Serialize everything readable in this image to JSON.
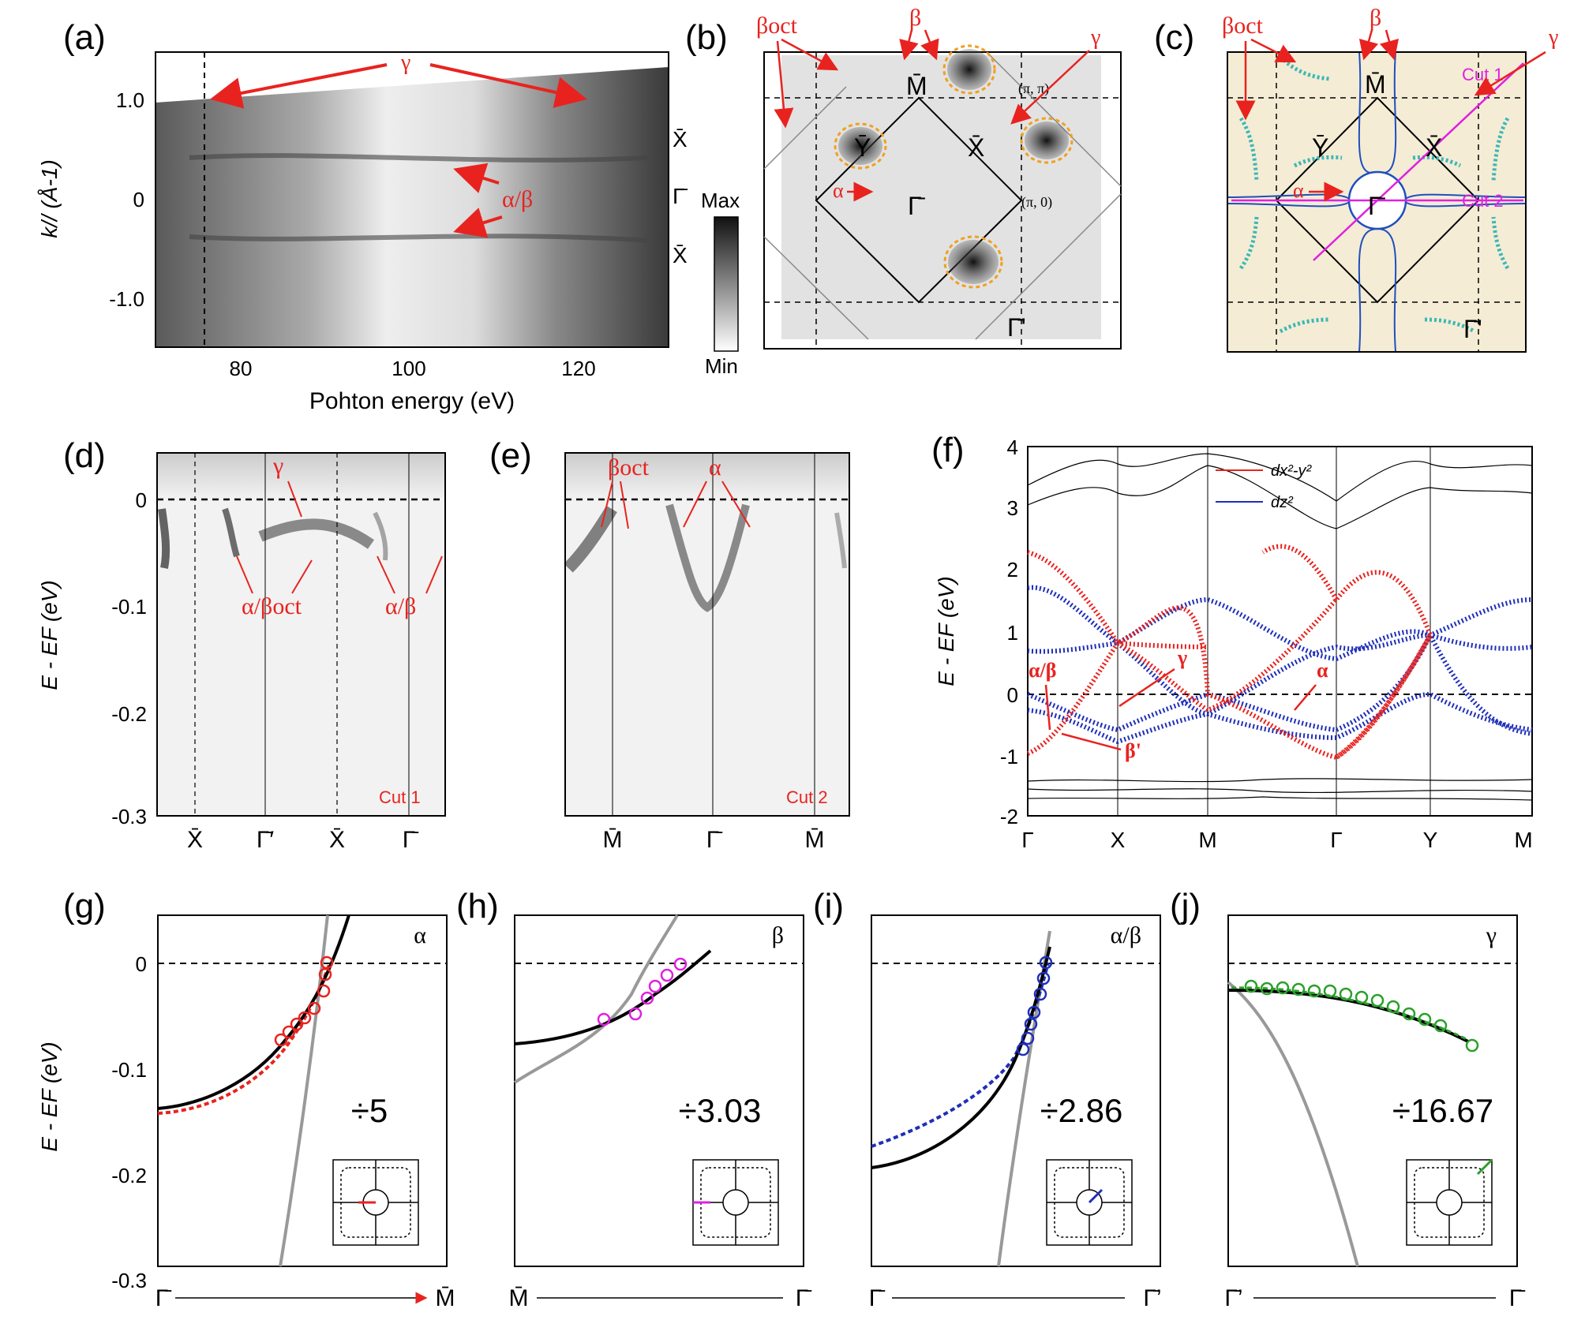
{
  "panels": {
    "a": {
      "label": "(a)",
      "xlabel": "Pohton energy (eV)",
      "ylabel": "k// (Å-1)",
      "xticks": [
        "80",
        "100",
        "120"
      ],
      "yticks": [
        "1.0",
        "0",
        "-1.0"
      ],
      "right_labels": [
        "X̄",
        "Γ̄",
        "X̄"
      ],
      "annotations": [
        "γ",
        "α/β"
      ],
      "colorbar": {
        "max": "Max",
        "min": "Min"
      }
    },
    "b": {
      "label": "(b)",
      "points": [
        "M̄",
        "Ȳ",
        "X̄",
        "Γ̄",
        "Γ̄'"
      ],
      "coords": [
        "(π, π)",
        "(π, 0)"
      ],
      "annotations": [
        "βoct",
        "β",
        "γ",
        "α"
      ]
    },
    "c": {
      "label": "(c)",
      "points": [
        "M̄",
        "Ȳ",
        "X̄",
        "Γ̄",
        "Γ̄'"
      ],
      "cuts": [
        "Cut 1",
        "Cut 2"
      ],
      "annotations": [
        "βoct",
        "β",
        "γ",
        "α"
      ]
    },
    "d": {
      "label": "(d)",
      "ylabel": "E - EF (eV)",
      "yticks": [
        "0",
        "-0.1",
        "-0.2",
        "-0.3"
      ],
      "xticks": [
        "X̄",
        "Γ̄′",
        "X̄",
        "Γ̄"
      ],
      "cut": "Cut 1",
      "annotations": [
        "γ",
        "α/βoct",
        "α/β"
      ]
    },
    "e": {
      "label": "(e)",
      "xticks": [
        "M̄",
        "Γ̄",
        "M̄"
      ],
      "cut": "Cut 2",
      "annotations": [
        "βoct",
        "α"
      ]
    },
    "f": {
      "label": "(f)",
      "ylabel": "E - EF (eV)",
      "yticks": [
        "4",
        "3",
        "2",
        "1",
        "0",
        "-1",
        "-2"
      ],
      "xticks": [
        "Γ",
        "X",
        "M",
        "Γ",
        "Y",
        "M"
      ],
      "legend": [
        "dx²-y²",
        "dz²"
      ],
      "annotations": [
        "α/β",
        "γ",
        "α",
        "β'"
      ]
    },
    "g": {
      "label": "(g)",
      "band": "α",
      "factor": "÷5",
      "xstart": "Γ̄",
      "xend": "M̄"
    },
    "h": {
      "label": "(h)",
      "band": "β",
      "factor": "÷3.03",
      "xstart": "M̄",
      "xend": "Γ̄"
    },
    "i": {
      "label": "(i)",
      "band": "α/β",
      "factor": "÷2.86",
      "xstart": "Γ̄",
      "xend": "Γ̄’"
    },
    "j": {
      "label": "(j)",
      "band": "γ",
      "factor": "÷16.67",
      "xstart": "Γ̄’",
      "xend": "Γ̄"
    }
  },
  "bottom_ylabel": "E - EF (eV)",
  "bottom_yticks": [
    "0",
    "-0.1",
    "-0.2",
    "-0.3"
  ],
  "colors": {
    "red": "#e8231f",
    "blue": "#1f2fb8",
    "magenta": "#e020e0",
    "cyan": "#3bb7b7",
    "orange": "#f0a020",
    "green": "#2aa02a"
  }
}
